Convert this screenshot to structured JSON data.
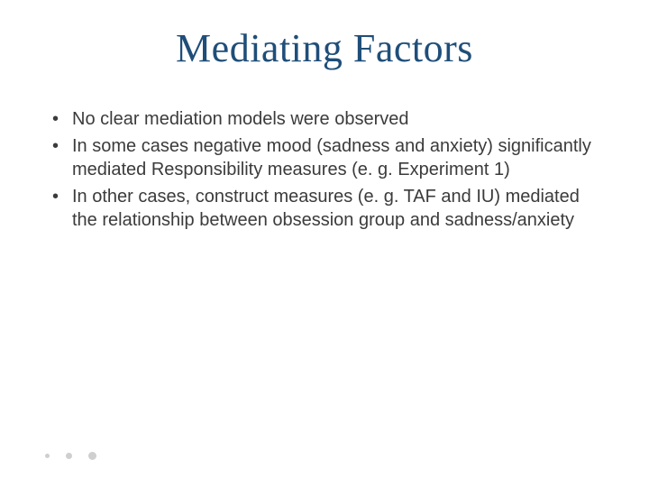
{
  "slide": {
    "title": "Mediating Factors",
    "bullets": [
      "No clear mediation models were observed",
      "In some cases negative mood (sadness and anxiety) significantly mediated Responsibility measures (e. g. Experiment 1)",
      "In other cases, construct measures (e. g. TAF and IU) mediated the relationship between obsession group and sadness/anxiety"
    ],
    "title_color": "#1f4e79",
    "title_fontfamily": "Garamond",
    "title_fontsize": 44,
    "body_fontfamily": "Arial",
    "body_fontsize": 20,
    "body_color": "#3b3b3b",
    "background_color": "#ffffff",
    "footer_dot_color": "#cfcfcf",
    "footer_dot_sizes": [
      5,
      7,
      9
    ]
  }
}
